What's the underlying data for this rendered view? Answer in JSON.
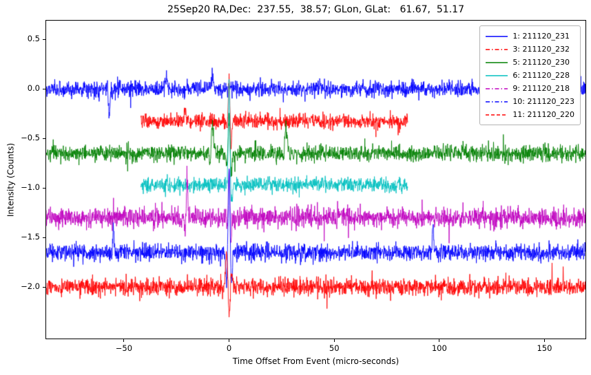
{
  "chart_data": {
    "type": "line",
    "title": "25Sep20 RA,Dec:  237.55,  38.57; GLon, GLat:   61.67,  51.17",
    "xlabel": "Time Offset From Event (micro-seconds)",
    "ylabel": "Intensity (Counts)",
    "xlim": [
      -87,
      169.5
    ],
    "ylim": [
      -2.52,
      0.69
    ],
    "grid": false,
    "legend_position": "upper-right",
    "xticks": [
      {
        "v": -50,
        "label": "−50"
      },
      {
        "v": 0,
        "label": "0"
      },
      {
        "v": 50,
        "label": "50"
      },
      {
        "v": 100,
        "label": "100"
      },
      {
        "v": 150,
        "label": "150"
      }
    ],
    "yticks": [
      {
        "v": 0.5,
        "label": "0.5"
      },
      {
        "v": 0.0,
        "label": "0.0"
      },
      {
        "v": -0.5,
        "label": "−0.5"
      },
      {
        "v": -1.0,
        "label": "−1.0"
      },
      {
        "v": -1.5,
        "label": "−1.5"
      },
      {
        "v": -2.0,
        "label": "−2.0"
      }
    ],
    "series": [
      {
        "name": "1: 211120_231",
        "color": "#0000ff",
        "dash": "solid",
        "offset": 0.0,
        "x_start": -87,
        "x_end": 169.5,
        "noise_sigma": 0.04,
        "spikes": [
          {
            "x": -57,
            "amp": -0.26,
            "w": 0.4
          },
          {
            "x": -30,
            "amp": 0.09,
            "w": 0.5
          },
          {
            "x": -8,
            "amp": 0.12,
            "w": 0.6
          },
          {
            "x": 152,
            "amp": -0.14,
            "w": 0.4
          }
        ]
      },
      {
        "name": "3: 211120_232",
        "color": "#ff0000",
        "dash": "dashdot",
        "offset": -0.33,
        "x_start": -42,
        "x_end": 85,
        "noise_sigma": 0.038,
        "spikes": [
          {
            "x": -21,
            "amp": 0.16,
            "w": 0.4
          },
          {
            "x": 0,
            "amp": 0.46,
            "w": 0.55,
            "osc": true
          },
          {
            "x": 0.9,
            "amp": -0.2,
            "w": 0.35
          }
        ]
      },
      {
        "name": "5: 211120_230",
        "color": "#008000",
        "dash": "solid",
        "offset": -0.65,
        "x_start": -87,
        "x_end": 169.5,
        "noise_sigma": 0.04,
        "spikes": [
          {
            "x": -8,
            "amp": 0.3,
            "w": 0.5
          },
          {
            "x": -9,
            "amp": -0.16,
            "w": 0.35
          },
          {
            "x": 0,
            "amp": 0.36,
            "w": 0.8,
            "osc": true
          },
          {
            "x": 1,
            "amp": -0.15,
            "w": 0.3
          },
          {
            "x": 27,
            "amp": 0.3,
            "w": 0.55
          },
          {
            "x": 26,
            "amp": -0.12,
            "w": 0.35
          }
        ]
      },
      {
        "name": "6: 211120_228",
        "color": "#00bfbf",
        "dash": "solid",
        "offset": -0.97,
        "x_start": -42,
        "x_end": 85,
        "noise_sigma": 0.038,
        "spikes": [
          {
            "x": 0,
            "amp": 1.12,
            "w": 0.35
          },
          {
            "x": 1.2,
            "amp": -0.16,
            "w": 0.4
          }
        ]
      },
      {
        "name": "9: 211120_218",
        "color": "#bf00bf",
        "dash": "dashdot",
        "offset": -1.3,
        "x_start": -87,
        "x_end": 169.5,
        "noise_sigma": 0.05,
        "spikes": [
          {
            "x": -20,
            "amp": 0.37,
            "w": 0.4
          },
          {
            "x": -20.8,
            "amp": -0.2,
            "w": 0.3
          },
          {
            "x": 0,
            "amp": 0.52,
            "w": 0.5,
            "osc": true
          },
          {
            "x": 0.9,
            "amp": -0.22,
            "w": 0.35
          }
        ]
      },
      {
        "name": "10: 211120_223",
        "color": "#0000ff",
        "dash": "dashdot",
        "offset": -1.65,
        "x_start": -87,
        "x_end": 169.5,
        "noise_sigma": 0.042,
        "spikes": [
          {
            "x": -55,
            "amp": 0.25,
            "w": 0.3
          },
          {
            "x": 0,
            "amp": 0.82,
            "w": 0.9,
            "osc": true
          },
          {
            "x": 97,
            "amp": 0.27,
            "w": 0.3
          }
        ]
      },
      {
        "name": "11: 211120_220",
        "color": "#ff0000",
        "dash": "dashed",
        "offset": -2.0,
        "x_start": -87,
        "x_end": 169.5,
        "noise_sigma": 0.042,
        "spikes": [
          {
            "x": 0,
            "amp": -0.36,
            "w": 1.1,
            "osc": true
          },
          {
            "x": -1,
            "amp": 0.18,
            "w": 0.6
          }
        ]
      }
    ]
  }
}
